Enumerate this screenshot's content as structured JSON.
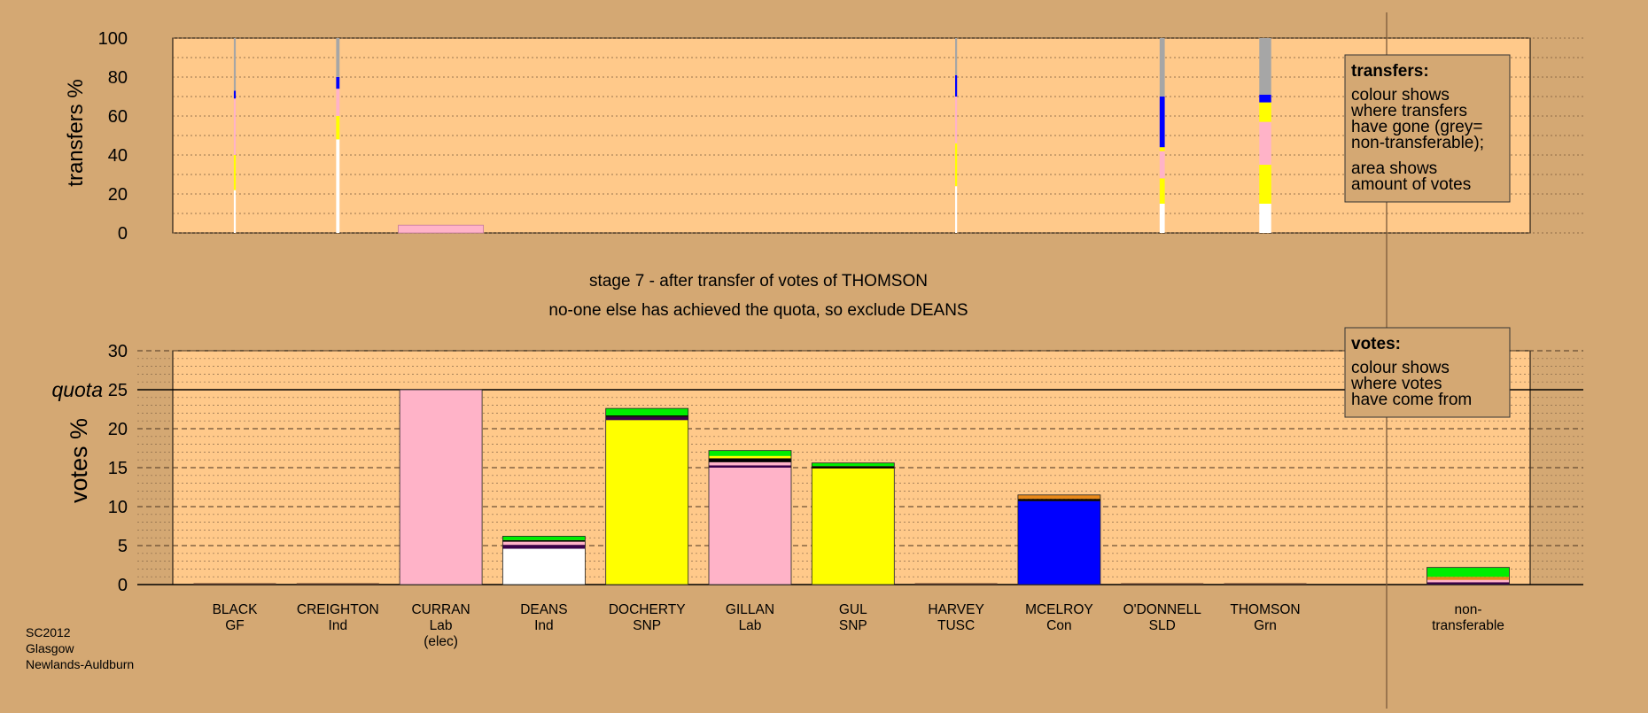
{
  "colors": {
    "background": "#d4a873",
    "plot_area": "#ffc98a",
    "GF": "#00ee00",
    "Ind": "#ffffff",
    "Lab": "#ffb3c8",
    "SNP": "#ffff00",
    "TUSC": "#a0522d",
    "Con": "#0000ff",
    "SLD": "#e8891b",
    "Grn": "#33dd00",
    "nontransferable": "#a6a6a6",
    "black": "#000000",
    "purple": "#3a004a"
  },
  "labels": {
    "stage": "stage 7 - after transfer of votes of THOMSON",
    "note": "no-one else has achieved the quota, so exclude DEANS",
    "quota": "quota",
    "transfers_ylabel": "transfers %",
    "votes_ylabel": "votes %",
    "election": [
      "SC2012",
      "Glasgow",
      "Newlands-Auldburn"
    ]
  },
  "legends": {
    "transfers": {
      "title": "transfers:",
      "lines1": [
        "colour shows",
        "where transfers",
        "have gone (grey=",
        "non-transferable);"
      ],
      "lines2": [
        "area shows",
        "amount of votes"
      ]
    },
    "votes": {
      "title": "votes:",
      "lines": [
        "colour shows",
        "where votes",
        "have come from"
      ]
    }
  },
  "chart_data": [
    {
      "type": "bar",
      "name": "transfers",
      "ylabel": "transfers %",
      "ylim": [
        0,
        100
      ],
      "yticks": [
        0,
        20,
        40,
        60,
        80,
        100
      ],
      "columns": [
        {
          "name": "BLACK",
          "width": 0.02,
          "segments": [
            {
              "party": "Ind",
              "v": 22
            },
            {
              "party": "SNP",
              "v": 18
            },
            {
              "party": "Lab",
              "v": 29
            },
            {
              "party": "Con",
              "v": 4
            },
            {
              "party": "nontransferable",
              "v": 27
            }
          ]
        },
        {
          "name": "CREIGHTON",
          "width": 0.04,
          "segments": [
            {
              "party": "Ind",
              "v": 48
            },
            {
              "party": "SNP",
              "v": 12
            },
            {
              "party": "Lab",
              "v": 14
            },
            {
              "party": "Con",
              "v": 6
            },
            {
              "party": "nontransferable",
              "v": 20
            }
          ]
        },
        {
          "name": "CURRAN",
          "width": 1.0,
          "segments": [
            {
              "party": "Lab",
              "v": 4
            }
          ]
        },
        {
          "name": "HARVEY",
          "width": 0.02,
          "segments": [
            {
              "party": "Ind",
              "v": 24
            },
            {
              "party": "SNP",
              "v": 22
            },
            {
              "party": "Lab",
              "v": 24
            },
            {
              "party": "Con",
              "v": 11
            },
            {
              "party": "nontransferable",
              "v": 19
            }
          ]
        },
        {
          "name": "O'DONNELL",
          "width": 0.06,
          "segments": [
            {
              "party": "Ind",
              "v": 15
            },
            {
              "party": "SNP",
              "v": 13
            },
            {
              "party": "Lab",
              "v": 14
            },
            {
              "party": "SNP",
              "v": 2
            },
            {
              "party": "Con",
              "v": 26
            },
            {
              "party": "nontransferable",
              "v": 30
            }
          ]
        },
        {
          "name": "THOMSON",
          "width": 0.14,
          "segments": [
            {
              "party": "Ind",
              "v": 15
            },
            {
              "party": "SNP",
              "v": 20
            },
            {
              "party": "Lab",
              "v": 22
            },
            {
              "party": "SNP",
              "v": 10
            },
            {
              "party": "Con",
              "v": 4
            },
            {
              "party": "nontransferable",
              "v": 29
            }
          ]
        }
      ]
    },
    {
      "type": "bar",
      "name": "votes",
      "ylabel": "votes %",
      "ylim": [
        0,
        30
      ],
      "yticks": [
        0,
        5,
        10,
        15,
        20,
        25,
        30
      ],
      "quota": 25,
      "categories": [
        {
          "name": "BLACK",
          "party": "GF"
        },
        {
          "name": "CREIGHTON",
          "party": "Ind"
        },
        {
          "name": "CURRAN",
          "party": "Lab",
          "extra": "(elec)"
        },
        {
          "name": "DEANS",
          "party": "Ind"
        },
        {
          "name": "DOCHERTY",
          "party": "SNP"
        },
        {
          "name": "GILLAN",
          "party": "Lab"
        },
        {
          "name": "GUL",
          "party": "SNP"
        },
        {
          "name": "HARVEY",
          "party": "TUSC"
        },
        {
          "name": "MCELROY",
          "party": "Con"
        },
        {
          "name": "O'DONNELL",
          "party": "SLD"
        },
        {
          "name": "THOMSON",
          "party": "Grn"
        }
      ],
      "nontransferable_label": [
        "non-",
        "transferable"
      ],
      "stacks": [
        [],
        [],
        [
          {
            "c": "Lab",
            "v": 25
          }
        ],
        [
          {
            "c": "Ind",
            "v": 4.6
          },
          {
            "c": "purple",
            "v": 0.5
          },
          {
            "c": "Lab",
            "v": 0.4
          },
          {
            "c": "black",
            "v": 0.2
          },
          {
            "c": "GF",
            "v": 0.5
          }
        ],
        [
          {
            "c": "SNP",
            "v": 21.1
          },
          {
            "c": "purple",
            "v": 0.4
          },
          {
            "c": "black",
            "v": 0.2
          },
          {
            "c": "GF",
            "v": 0.9
          }
        ],
        [
          {
            "c": "Lab",
            "v": 15.0
          },
          {
            "c": "purple",
            "v": 0.3
          },
          {
            "c": "Lab",
            "v": 0.4
          },
          {
            "c": "black",
            "v": 0.5
          },
          {
            "c": "SNP",
            "v": 0.3
          },
          {
            "c": "GF",
            "v": 0.7
          }
        ],
        [
          {
            "c": "SNP",
            "v": 14.9
          },
          {
            "c": "black",
            "v": 0.3
          },
          {
            "c": "GF",
            "v": 0.4
          }
        ],
        [],
        [
          {
            "c": "Con",
            "v": 10.7
          },
          {
            "c": "black",
            "v": 0.3
          },
          {
            "c": "SLD",
            "v": 0.5
          }
        ],
        [],
        [],
        [
          {
            "c": "purple",
            "v": 0.3
          },
          {
            "c": "Lab",
            "v": 0.3
          },
          {
            "c": "SLD",
            "v": 0.4
          },
          {
            "c": "GF",
            "v": 1.2
          }
        ]
      ]
    }
  ]
}
